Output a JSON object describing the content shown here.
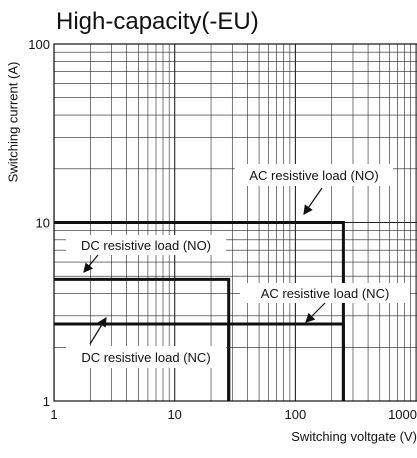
{
  "chart_data": {
    "type": "line",
    "title": "High-capacity(-EU)",
    "xlabel": "Switching voltgate (V)",
    "ylabel": "Switching current (A)",
    "x_scale": "log",
    "y_scale": "log",
    "xlim": [
      1,
      1000
    ],
    "ylim": [
      1,
      100
    ],
    "grid": true,
    "x_ticks": [
      1,
      10,
      100,
      1000
    ],
    "x_tick_labels": [
      "1",
      "10",
      "100",
      "1000"
    ],
    "y_ticks": [
      1,
      10,
      100
    ],
    "y_tick_labels": [
      "1",
      "10",
      "100"
    ],
    "series": [
      {
        "name": "AC resistive load (NO)",
        "values": [
          {
            "x": 1,
            "y": 10
          },
          {
            "x": 250,
            "y": 10
          },
          {
            "x": 250,
            "y": 1
          }
        ]
      },
      {
        "name": "DC resistive load (NO)",
        "values": [
          {
            "x": 1,
            "y": 4.8
          },
          {
            "x": 28,
            "y": 4.8
          },
          {
            "x": 28,
            "y": 1
          }
        ]
      },
      {
        "name": "AC resistive load (NC)",
        "values": [
          {
            "x": 1,
            "y": 2.7
          },
          {
            "x": 250,
            "y": 2.7
          },
          {
            "x": 250,
            "y": 1
          }
        ]
      },
      {
        "name": "DC resistive load (NC)",
        "values": [
          {
            "x": 1,
            "y": 2.7
          },
          {
            "x": 28,
            "y": 2.7
          },
          {
            "x": 28,
            "y": 1
          }
        ]
      }
    ],
    "annotations": [
      {
        "text": "AC resistive load (NO)",
        "series": 0,
        "point": {
          "x": 90,
          "y": 10
        }
      },
      {
        "text": "DC resistive load (NO)",
        "series": 1,
        "point": {
          "x": 1.6,
          "y": 4.8
        }
      },
      {
        "text": "AC resistive load (NC)",
        "series": 2,
        "point": {
          "x": 80,
          "y": 2.7
        }
      },
      {
        "text": "DC resistive load (NC)",
        "series": 3,
        "point": {
          "x": 1.7,
          "y": 2.7
        }
      }
    ]
  }
}
